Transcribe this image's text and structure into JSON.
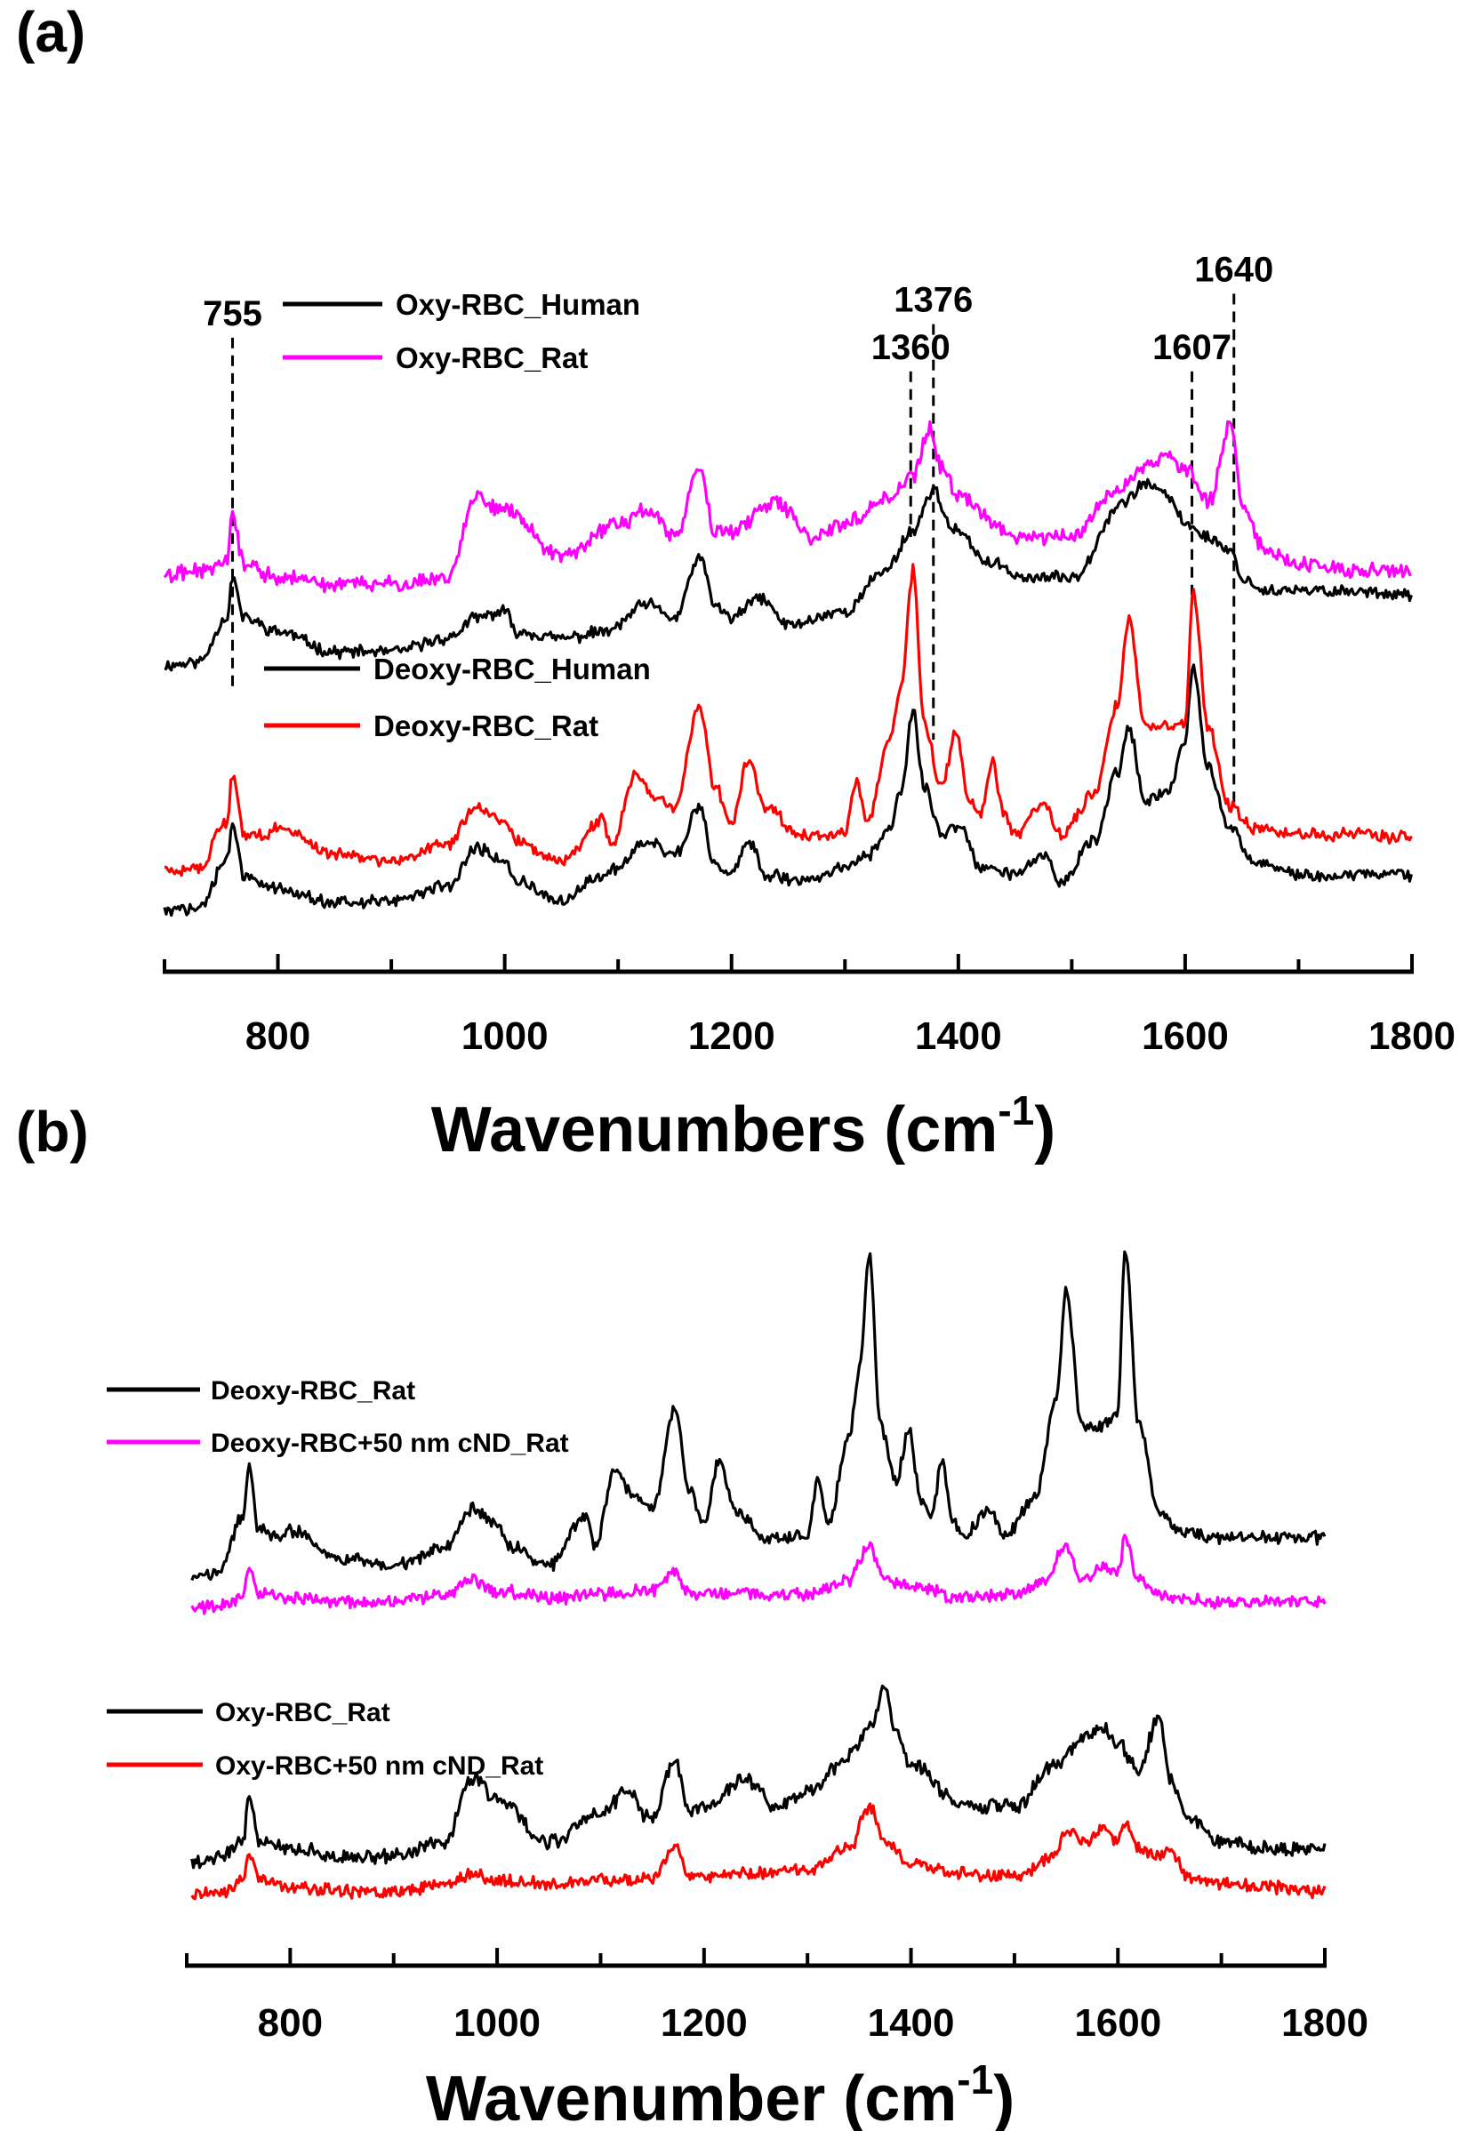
{
  "chart_data": [
    {
      "panel": "(a)",
      "type": "line",
      "xlabel": "Wavenumbers (cm",
      "xlabel_sup": "-1",
      "xlabel_close": ")",
      "ylabel": "",
      "xlim": [
        700,
        1800
      ],
      "ylim": [
        0,
        10
      ],
      "xticks": [
        "800",
        "1000",
        "1200",
        "1400",
        "1600",
        "1800"
      ],
      "xtick_values": [
        800,
        1000,
        1200,
        1400,
        1600,
        1800
      ],
      "minor_step": 100,
      "grid": false,
      "legend_groups": [
        {
          "placement": "upper-left",
          "entries": [
            "Oxy-RBC_Human",
            "Oxy-RBC_Rat"
          ]
        },
        {
          "placement": "middle-left",
          "entries": [
            "Deoxy-RBC_Human",
            "Deoxy-RBC_Rat"
          ]
        }
      ],
      "annotations": [
        {
          "label": "755",
          "x": 760,
          "y_top": 8.95,
          "y_bottom": 3.7
        },
        {
          "label": "1360",
          "x": 1358,
          "y_top": 8.45,
          "y_bottom": 6.0
        },
        {
          "label": "1376",
          "x": 1378,
          "y_top": 9.15,
          "y_bottom": 3.0
        },
        {
          "label": "1607",
          "x": 1606,
          "y_top": 8.45,
          "y_bottom": 5.0
        },
        {
          "label": "1640",
          "x": 1643,
          "y_top": 9.6,
          "y_bottom": 2.05
        }
      ],
      "series": [
        {
          "name": "Oxy-RBC_Human",
          "color": "#000000",
          "noise": 0.07,
          "x": [
            700,
            730,
            755,
            760,
            770,
            800,
            850,
            900,
            950,
            975,
            1000,
            1010,
            1050,
            1090,
            1125,
            1150,
            1172,
            1185,
            1200,
            1225,
            1250,
            1300,
            1335,
            1360,
            1378,
            1395,
            1430,
            1460,
            1500,
            1545,
            1565,
            1585,
            1600,
            1620,
            1640,
            1650,
            1670,
            1700,
            1750,
            1800
          ],
          "y": [
            4.1,
            4.15,
            4.8,
            5.4,
            4.8,
            4.6,
            4.3,
            4.3,
            4.5,
            4.8,
            4.9,
            4.6,
            4.5,
            4.6,
            5.0,
            4.8,
            5.7,
            5.0,
            4.8,
            5.1,
            4.7,
            4.9,
            5.5,
            6.1,
            6.7,
            6.1,
            5.6,
            5.4,
            5.4,
            6.5,
            6.8,
            6.6,
            6.2,
            6.0,
            5.8,
            5.4,
            5.2,
            5.2,
            5.2,
            5.15
          ]
        },
        {
          "name": "Oxy-RBC_Rat",
          "color": "#ff00ff",
          "noise": 0.09,
          "x": [
            700,
            730,
            755,
            760,
            770,
            800,
            850,
            900,
            950,
            975,
            1000,
            1050,
            1100,
            1125,
            1150,
            1172,
            1185,
            1200,
            1240,
            1270,
            1300,
            1340,
            1360,
            1375,
            1385,
            1400,
            1450,
            1500,
            1540,
            1570,
            1585,
            1600,
            1620,
            1640,
            1650,
            1670,
            1700,
            1750,
            1800
          ],
          "y": [
            5.4,
            5.5,
            5.6,
            6.3,
            5.6,
            5.4,
            5.3,
            5.3,
            5.4,
            6.6,
            6.4,
            5.7,
            6.2,
            6.4,
            6.0,
            7.0,
            6.1,
            6.1,
            6.5,
            6.0,
            6.2,
            6.6,
            6.9,
            7.6,
            7.0,
            6.6,
            6.0,
            6.0,
            6.7,
            7.1,
            7.2,
            7.0,
            6.5,
            7.7,
            6.5,
            5.8,
            5.6,
            5.5,
            5.5
          ]
        },
        {
          "name": "Deoxy-RBC_Human",
          "color": "#000000",
          "noise": 0.07,
          "x": [
            700,
            730,
            755,
            760,
            770,
            800,
            850,
            900,
            950,
            975,
            1000,
            1010,
            1050,
            1085,
            1100,
            1125,
            1150,
            1172,
            1185,
            1200,
            1215,
            1230,
            1260,
            1300,
            1320,
            1340,
            1350,
            1360,
            1370,
            1385,
            1400,
            1420,
            1450,
            1475,
            1490,
            1520,
            1540,
            1550,
            1565,
            1585,
            1600,
            1607,
            1620,
            1640,
            1660,
            1700,
            1750,
            1800
          ],
          "y": [
            0.45,
            0.5,
            1.2,
            1.7,
            1.0,
            0.8,
            0.6,
            0.6,
            0.85,
            1.4,
            1.2,
            0.9,
            0.6,
            1.0,
            1.1,
            1.5,
            1.3,
            2.0,
            1.2,
            1.0,
            1.5,
            1.0,
            0.9,
            1.1,
            1.3,
            1.7,
            2.3,
            3.4,
            2.3,
            1.6,
            1.7,
            1.1,
            1.0,
            1.3,
            0.9,
            1.5,
            2.5,
            3.2,
            2.1,
            2.2,
            3.0,
            4.1,
            2.6,
            1.7,
            1.2,
            1.0,
            1.0,
            1.0
          ]
        },
        {
          "name": "Deoxy-RBC_Rat",
          "color": "#ff0000",
          "noise": 0.07,
          "x": [
            700,
            730,
            755,
            760,
            770,
            790,
            800,
            850,
            900,
            950,
            975,
            1000,
            1010,
            1050,
            1085,
            1095,
            1115,
            1130,
            1150,
            1172,
            1185,
            1200,
            1215,
            1230,
            1260,
            1300,
            1310,
            1320,
            1340,
            1350,
            1360,
            1370,
            1385,
            1398,
            1410,
            1420,
            1430,
            1440,
            1450,
            1475,
            1490,
            1520,
            1540,
            1550,
            1565,
            1585,
            1600,
            1607,
            1620,
            1640,
            1660,
            1700,
            1750,
            1800
          ],
          "y": [
            1.05,
            1.1,
            1.8,
            2.5,
            1.6,
            1.6,
            1.7,
            1.3,
            1.2,
            1.45,
            2.0,
            1.8,
            1.5,
            1.2,
            1.8,
            1.5,
            2.5,
            2.2,
            2.0,
            3.5,
            2.3,
            1.8,
            2.7,
            2.0,
            1.6,
            1.6,
            2.4,
            1.8,
            3.0,
            3.8,
            5.5,
            3.2,
            2.3,
            3.1,
            2.1,
            1.9,
            2.7,
            1.9,
            1.6,
            2.0,
            1.6,
            2.2,
            3.5,
            4.8,
            3.2,
            3.2,
            3.2,
            5.2,
            3.2,
            2.0,
            1.7,
            1.6,
            1.6,
            1.55
          ]
        }
      ]
    },
    {
      "panel": "(b)",
      "type": "line",
      "xlabel": "Wavenumber (cm",
      "xlabel_sup": "-1",
      "xlabel_close": ")",
      "ylabel": "",
      "xlim": [
        700,
        1800
      ],
      "ylim": [
        0,
        10
      ],
      "xticks": [
        "800",
        "1000",
        "1200",
        "1400",
        "1600",
        "1800"
      ],
      "xtick_values": [
        800,
        1000,
        1200,
        1400,
        1600,
        1800
      ],
      "minor_step": 100,
      "grid": false,
      "legend_groups": [
        {
          "placement": "upper-left",
          "entries": [
            "Deoxy-RBC_Rat",
            "Deoxy-RBC+50 nm cND_Rat"
          ]
        },
        {
          "placement": "middle-left",
          "entries": [
            "Oxy-RBC_Rat",
            "Oxy-RBC+50 nm cND_Rat"
          ]
        }
      ],
      "annotations": [],
      "series": [
        {
          "name": "Deoxy-RBC_Rat",
          "color": "#000000",
          "noise": 0.07,
          "x": [
            705,
            730,
            755,
            760,
            770,
            790,
            800,
            850,
            900,
            950,
            975,
            1000,
            1010,
            1050,
            1085,
            1095,
            1115,
            1130,
            1150,
            1172,
            1185,
            1200,
            1215,
            1230,
            1260,
            1300,
            1310,
            1320,
            1340,
            1350,
            1360,
            1370,
            1385,
            1398,
            1410,
            1420,
            1430,
            1440,
            1450,
            1475,
            1490,
            1520,
            1540,
            1550,
            1565,
            1585,
            1600,
            1607,
            1620,
            1640,
            1660,
            1700,
            1750,
            1800
          ],
          "y": [
            5.05,
            5.1,
            5.9,
            6.6,
            5.7,
            5.6,
            5.7,
            5.3,
            5.2,
            5.45,
            6.0,
            5.8,
            5.5,
            5.2,
            5.9,
            5.5,
            6.6,
            6.2,
            6.0,
            7.4,
            6.3,
            5.8,
            6.7,
            6.0,
            5.6,
            5.6,
            6.4,
            5.8,
            7.0,
            8.0,
            9.6,
            7.2,
            6.4,
            7.1,
            6.1,
            5.9,
            6.7,
            5.9,
            5.6,
            6.0,
            5.6,
            6.2,
            7.5,
            9.1,
            7.2,
            7.2,
            7.4,
            9.7,
            7.2,
            6.0,
            5.7,
            5.6,
            5.6,
            5.6
          ]
        },
        {
          "name": "Deoxy-RBC+50 nm cND_Rat",
          "color": "#ff00ff",
          "noise": 0.07,
          "x": [
            705,
            740,
            755,
            760,
            770,
            800,
            850,
            900,
            950,
            975,
            1000,
            1050,
            1100,
            1150,
            1172,
            1185,
            1200,
            1250,
            1300,
            1340,
            1360,
            1375,
            1400,
            1450,
            1500,
            1530,
            1550,
            1565,
            1585,
            1600,
            1607,
            1620,
            1640,
            1660,
            1700,
            1750,
            1800
          ],
          "y": [
            4.6,
            4.65,
            4.8,
            5.2,
            4.8,
            4.75,
            4.7,
            4.7,
            4.8,
            5.0,
            4.85,
            4.75,
            4.8,
            4.85,
            5.1,
            4.85,
            4.8,
            4.8,
            4.8,
            5.0,
            5.5,
            5.0,
            4.9,
            4.75,
            4.8,
            5.0,
            5.5,
            5.0,
            5.2,
            5.1,
            5.6,
            5.0,
            4.8,
            4.75,
            4.7,
            4.7,
            4.7
          ]
        },
        {
          "name": "Oxy-RBC_Rat",
          "color": "#000000",
          "noise": 0.08,
          "x": [
            705,
            730,
            755,
            760,
            770,
            800,
            850,
            900,
            950,
            975,
            1000,
            1050,
            1100,
            1125,
            1150,
            1172,
            1185,
            1200,
            1240,
            1270,
            1300,
            1340,
            1360,
            1375,
            1385,
            1400,
            1450,
            1500,
            1540,
            1570,
            1585,
            1600,
            1620,
            1640,
            1650,
            1670,
            1700,
            1750,
            1800
          ],
          "y": [
            1.0,
            1.1,
            1.3,
            2.0,
            1.3,
            1.2,
            1.1,
            1.1,
            1.3,
            2.2,
            1.9,
            1.3,
            1.7,
            2.0,
            1.6,
            2.5,
            1.7,
            1.8,
            2.2,
            1.8,
            2.0,
            2.5,
            2.9,
            3.5,
            2.9,
            2.4,
            1.8,
            1.8,
            2.4,
            2.8,
            2.9,
            2.7,
            2.3,
            3.1,
            2.2,
            1.6,
            1.3,
            1.2,
            1.2
          ]
        },
        {
          "name": "Oxy-RBC+50 nm cND_Rat",
          "color": "#ff0000",
          "noise": 0.07,
          "x": [
            705,
            740,
            755,
            760,
            770,
            800,
            850,
            900,
            950,
            975,
            1000,
            1050,
            1100,
            1150,
            1172,
            1185,
            1200,
            1250,
            1300,
            1340,
            1360,
            1375,
            1400,
            1450,
            1500,
            1540,
            1550,
            1570,
            1585,
            1600,
            1607,
            1620,
            1640,
            1650,
            1670,
            1700,
            1750,
            1800
          ],
          "y": [
            0.55,
            0.6,
            0.8,
            1.1,
            0.8,
            0.65,
            0.6,
            0.6,
            0.7,
            0.85,
            0.75,
            0.7,
            0.75,
            0.8,
            1.2,
            0.8,
            0.8,
            0.85,
            0.9,
            1.2,
            1.8,
            1.3,
            1.0,
            0.85,
            0.8,
            1.1,
            1.5,
            1.3,
            1.5,
            1.3,
            1.6,
            1.2,
            1.1,
            1.2,
            0.8,
            0.7,
            0.65,
            0.6
          ]
        }
      ]
    }
  ]
}
